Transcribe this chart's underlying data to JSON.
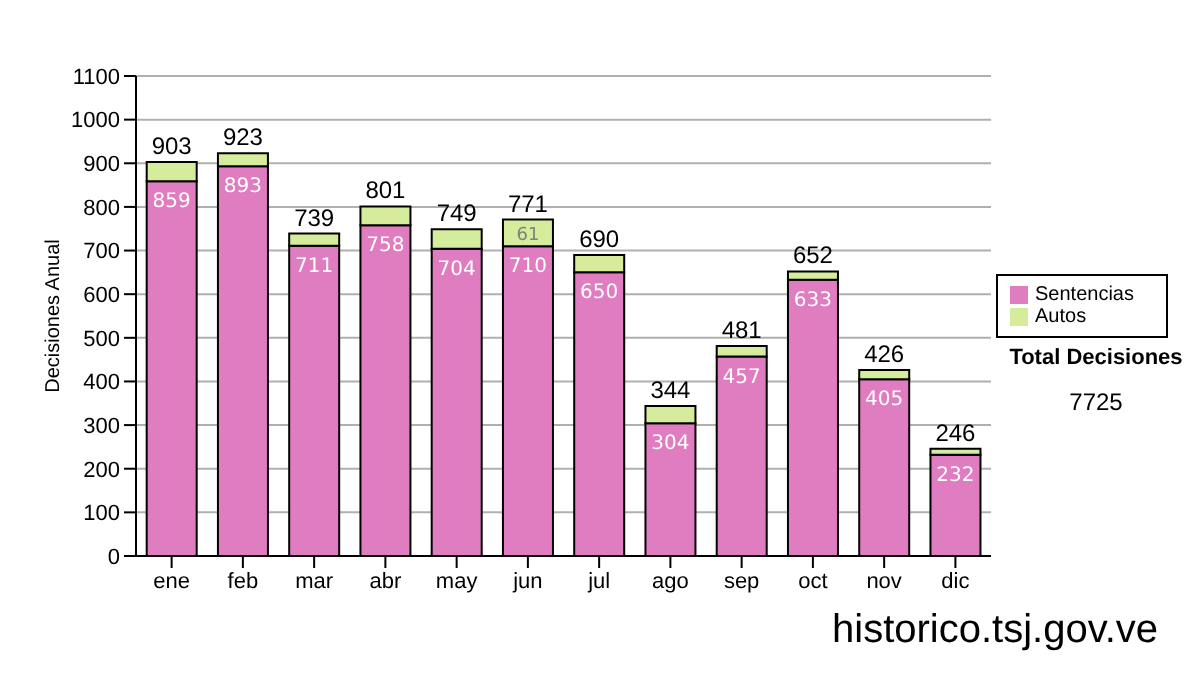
{
  "chart_data": {
    "type": "bar",
    "ylabel": "Decisiones Anual",
    "categories": [
      "ene",
      "feb",
      "mar",
      "abr",
      "may",
      "jun",
      "jul",
      "ago",
      "sep",
      "oct",
      "nov",
      "dic"
    ],
    "stacked": true,
    "series": [
      {
        "name": "Sentencias",
        "color": "#e07cc0",
        "values": [
          859,
          893,
          711,
          758,
          704,
          710,
          650,
          304,
          457,
          633,
          405,
          232
        ],
        "value_labels": [
          "859",
          "893",
          "711",
          "758",
          "704",
          "710",
          "650",
          "304",
          "457",
          "633",
          "405",
          "232"
        ]
      },
      {
        "name": "Autos",
        "color": "#d4ec9c",
        "values": [
          44,
          30,
          28,
          43,
          45,
          61,
          40,
          40,
          24,
          19,
          21,
          14
        ],
        "value_labels": [
          null,
          null,
          null,
          null,
          null,
          "61",
          null,
          null,
          null,
          null,
          null,
          null
        ]
      }
    ],
    "totals": [
      "903",
      "923",
      "739",
      "801",
      "749",
      "771",
      "690",
      "344",
      "481",
      "652",
      "426",
      "246"
    ],
    "ylim": [
      0,
      1100
    ],
    "yticks": [
      0,
      100,
      200,
      300,
      400,
      500,
      600,
      700,
      800,
      900,
      1000,
      1100
    ],
    "grid": "y",
    "legend": "right",
    "annotations": [
      "Total Decisiones",
      "7725",
      "historico.tsj.gov.ve"
    ]
  }
}
